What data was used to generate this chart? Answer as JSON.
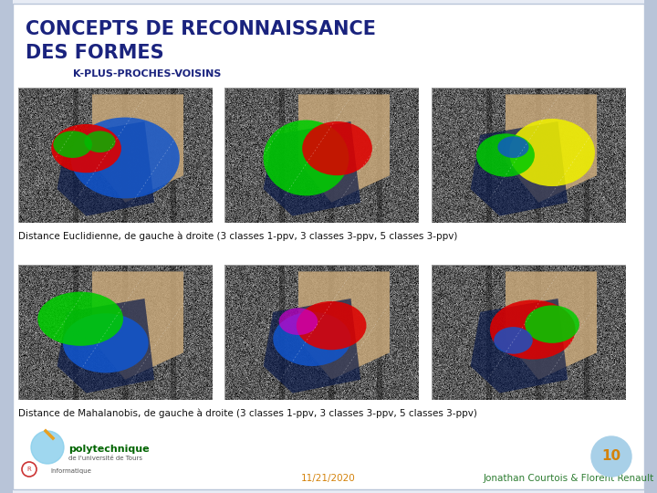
{
  "bg_color": "#e8ecf5",
  "slide_bg": "#ffffff",
  "border_color": "#b8c4d8",
  "title_line1": "CONCEPTS DE RECONNAISSANCE",
  "title_line2": "DES FORMES",
  "title_color": "#1a237e",
  "subtitle": "K-PLUS-PROCHES-VOISINS",
  "subtitle_color": "#1a237e",
  "caption1": "Distance Euclidienne, de gauche à droite (3 classes 1-ppv, 3 classes 3-ppv, 5 classes 3-ppv)",
  "caption2": "Distance de Mahalanobis, de gauche à droite (3 classes 1-ppv, 3 classes 3-ppv, 5 classes 3-ppv)",
  "caption_color": "#111111",
  "date": "11/21/2020",
  "date_color": "#d4820a",
  "authors": "Jonathan Courtois & Florent Renault",
  "authors_color": "#2e7d32",
  "page_num": "10",
  "page_num_color": "#d4820a",
  "page_circle_color": "#a8d0e8",
  "img_border": "#aaaaaa",
  "title_fontsize": 15,
  "subtitle_fontsize": 8,
  "caption_fontsize": 7.5,
  "footer_fontsize": 7.5
}
